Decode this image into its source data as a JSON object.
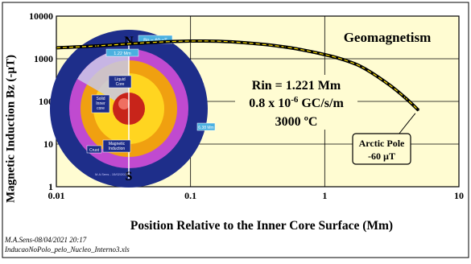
{
  "chart_data": {
    "type": "line",
    "title": "Geomagnetism",
    "xlabel": "Position Relative to the Inner Core Surface (Mm)",
    "ylabel": "Magnetic Induction Bz (-µT)",
    "x_scale": "log",
    "y_scale": "log",
    "xlim": [
      0.01,
      10
    ],
    "ylim": [
      1,
      10000
    ],
    "x_ticks": [
      "0.01",
      "0.1",
      "1",
      "10"
    ],
    "y_ticks": [
      "1",
      "10",
      "100",
      "1000",
      "10000"
    ],
    "grid": "major gridlines on both axes",
    "series": [
      {
        "x": [
          0.01,
          0.02,
          0.05,
          0.1,
          0.2,
          0.5,
          1.0,
          1.5,
          2.0,
          3.0,
          4.0,
          5.0
        ],
        "y": [
          1800,
          2000,
          2400,
          2600,
          2500,
          1900,
          1250,
          870,
          580,
          250,
          120,
          62
        ]
      }
    ],
    "parameters": {
      "rin": "Rin = 1.221 Mm",
      "rate_prefix": "0.8 x 10",
      "rate_exp": "-6",
      "rate_suffix": " GC/s/m",
      "temperature": "3000 ºC"
    },
    "annotation": {
      "line1": "Arctic Pole",
      "line2": "-60 µT",
      "point": [
        5.0,
        60
      ]
    }
  },
  "inset": {
    "labels": {
      "north": "N",
      "south": "S",
      "bp": "Bp = 60 µT",
      "inner_tag": "1.22 Mm",
      "outer_tag": "6.38 Mm",
      "liquid_core": "Liquid Core",
      "solid_inner_core": "Solid Inner core",
      "crust": "Crust",
      "magnetic_induction": "Magnetic Induction",
      "credit": "M.A.Sens - 15/02/2021"
    }
  },
  "footer": {
    "line1": "M.A.Sens-08/04/2021 20:17",
    "line2": "InducaoNoPolo_pelo_Nucleo_Interno3.xls"
  },
  "colors": {
    "plot_bg": "#fffcd2",
    "curve": "#000000",
    "curve_highlight": "#ffe000",
    "globe_outer": "#1e2e8a"
  }
}
